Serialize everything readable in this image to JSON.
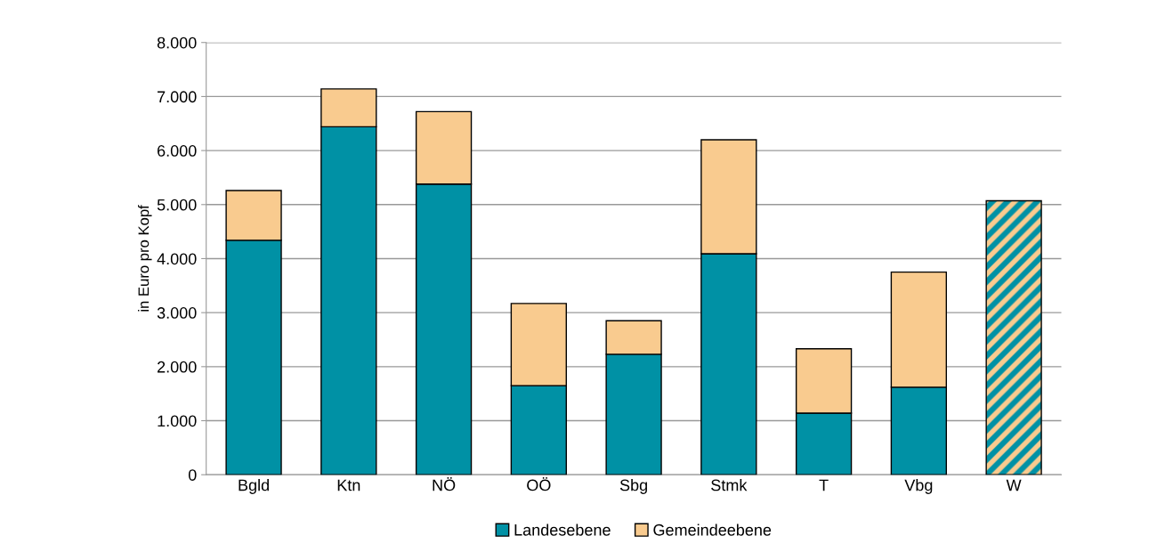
{
  "chart_data": {
    "type": "bar",
    "stacked": true,
    "ylabel": "in Euro pro Kopf",
    "categories": [
      "Bgld",
      "Ktn",
      "NÖ",
      "OÖ",
      "Sbg",
      "Stmk",
      "T",
      "Vbg",
      "W"
    ],
    "series": [
      {
        "name": "Landesebene",
        "color": "#0091a5",
        "values": [
          4340,
          6440,
          5380,
          1650,
          2230,
          4090,
          1140,
          1620,
          null
        ]
      },
      {
        "name": "Gemeindeebene",
        "color": "#f9cb8f",
        "values": [
          920,
          700,
          1340,
          1520,
          620,
          2110,
          1190,
          2130,
          null
        ]
      },
      {
        "color": "#0091a5",
        "values": [
          null,
          null,
          null,
          null,
          null,
          null,
          null,
          null,
          5070
        ]
      }
    ],
    "ylim": [
      0,
      8000
    ],
    "yticks": [
      {
        "value": 0,
        "label": "0"
      },
      {
        "value": 1000,
        "label": "1.000"
      },
      {
        "value": 2000,
        "label": "2.000"
      },
      {
        "value": 3000,
        "label": "3.000"
      },
      {
        "value": 4000,
        "label": "4.000"
      },
      {
        "value": 5000,
        "label": "5.000"
      },
      {
        "value": 6000,
        "label": "6.000"
      },
      {
        "value": 7000,
        "label": "7.000"
      },
      {
        "value": 8000,
        "label": "8.000"
      }
    ],
    "grid": "y",
    "legend": "bottom"
  }
}
